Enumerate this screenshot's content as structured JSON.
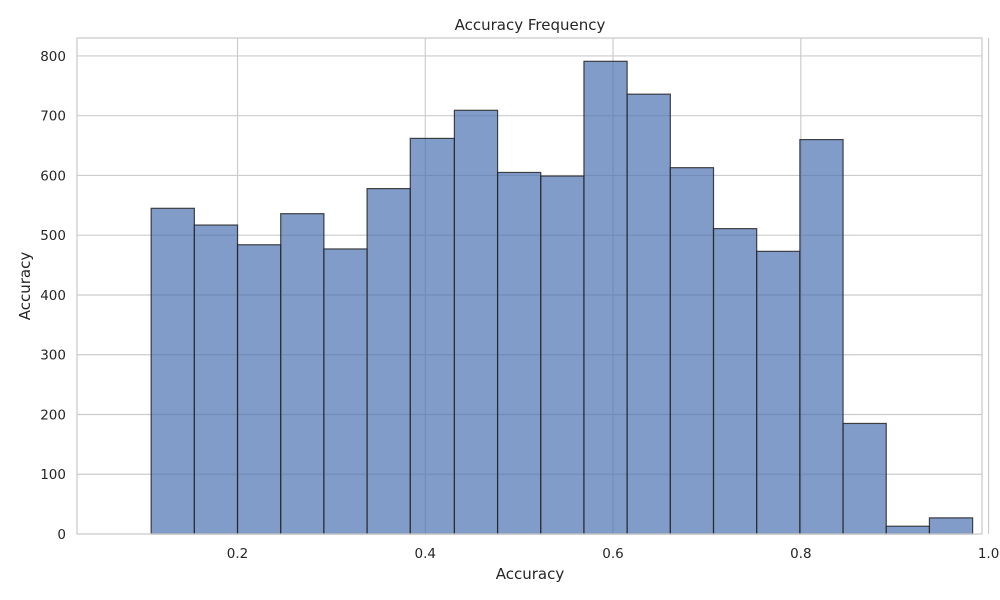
{
  "chart_data": {
    "type": "bar",
    "title": "Accuracy Frequency",
    "xlabel": "Accuracy",
    "ylabel": "Accuracy",
    "xlim": [
      0.029,
      0.993
    ],
    "ylim": [
      0,
      830
    ],
    "xticks": [
      0.2,
      0.4,
      0.6,
      0.8,
      1.0
    ],
    "xtick_labels": [
      "0.2",
      "0.4",
      "0.6",
      "0.8",
      "1.0"
    ],
    "yticks": [
      0,
      100,
      200,
      300,
      400,
      500,
      600,
      700,
      800
    ],
    "ytick_labels": [
      "0",
      "100",
      "200",
      "300",
      "400",
      "500",
      "600",
      "700",
      "800"
    ],
    "bin_edges": [
      0.108,
      0.154,
      0.2,
      0.246,
      0.292,
      0.338,
      0.384,
      0.431,
      0.477,
      0.523,
      0.569,
      0.615,
      0.661,
      0.707,
      0.753,
      0.799,
      0.845,
      0.891,
      0.937,
      0.983
    ],
    "values": [
      545,
      517,
      484,
      536,
      477,
      578,
      662,
      709,
      605,
      599,
      791,
      736,
      613,
      511,
      473,
      660,
      185,
      13,
      27
    ],
    "grid": true,
    "colors": {
      "bar_fill": "#4c72b0",
      "bar_edge": "#262626",
      "grid": "#cccccc"
    }
  }
}
